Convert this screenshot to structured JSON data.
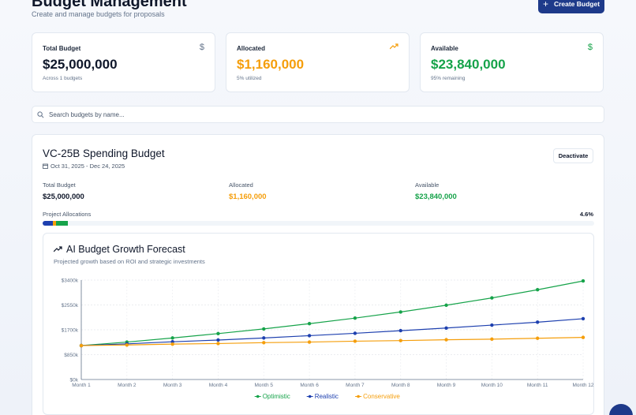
{
  "header": {
    "title": "Budget Management",
    "subtitle": "Create and manage budgets for proposals",
    "create_button": "Create Budget"
  },
  "stats": [
    {
      "label": "Total Budget",
      "value": "$25,000,000",
      "sub": "Across 1 budgets",
      "icon": "dollar-icon",
      "color": "#0f172a",
      "icon_color": "#64748b"
    },
    {
      "label": "Allocated",
      "value": "$1,160,000",
      "sub": "5% utilized",
      "icon": "trending-up-icon",
      "color": "#f59e0b",
      "icon_color": "#f59e0b"
    },
    {
      "label": "Available",
      "value": "$23,840,000",
      "sub": "95% remaining",
      "icon": "dollar-icon",
      "color": "#16a34a",
      "icon_color": "#16a34a"
    }
  ],
  "search": {
    "placeholder": "Search budgets by name..."
  },
  "budget": {
    "title": "VC-25B Spending Budget",
    "dates": "Oct 31, 2025 - Dec 24, 2025",
    "deactivate": "Deactivate",
    "total_label": "Total Budget",
    "total_value": "$25,000,000",
    "allocated_label": "Allocated",
    "allocated_value": "$1,160,000",
    "available_label": "Available",
    "available_value": "$23,840,000",
    "alloc_label": "Project Allocations",
    "alloc_pct": "4.6%",
    "alloc_segments": [
      {
        "share": 0.018,
        "color": "#1e40af"
      },
      {
        "share": 0.006,
        "color": "#f59e0b"
      },
      {
        "share": 0.022,
        "color": "#16a34a"
      }
    ]
  },
  "forecast": {
    "title": "AI Budget Growth Forecast",
    "subtitle": "Projected growth based on ROI and strategic investments"
  },
  "chart_data": {
    "type": "line",
    "x": [
      "Month 1",
      "Month 2",
      "Month 3",
      "Month 4",
      "Month 5",
      "Month 6",
      "Month 7",
      "Month 8",
      "Month 9",
      "Month 10",
      "Month 11",
      "Month 12"
    ],
    "yticks": [
      "$0k",
      "$850k",
      "$1700k",
      "$2550k",
      "$3400k"
    ],
    "ylim": [
      0,
      3400
    ],
    "grid": true,
    "legend_position": "bottom",
    "series": [
      {
        "name": "Optimistic",
        "color": "#16a34a",
        "values": [
          1160,
          1280,
          1420,
          1570,
          1730,
          1910,
          2100,
          2310,
          2540,
          2790,
          3070,
          3370
        ]
      },
      {
        "name": "Realistic",
        "color": "#1e40af",
        "values": [
          1160,
          1220,
          1290,
          1350,
          1420,
          1500,
          1580,
          1670,
          1760,
          1860,
          1960,
          2080
        ]
      },
      {
        "name": "Conservative",
        "color": "#f59e0b",
        "values": [
          1160,
          1180,
          1210,
          1230,
          1260,
          1280,
          1310,
          1330,
          1360,
          1380,
          1410,
          1440
        ]
      }
    ]
  }
}
